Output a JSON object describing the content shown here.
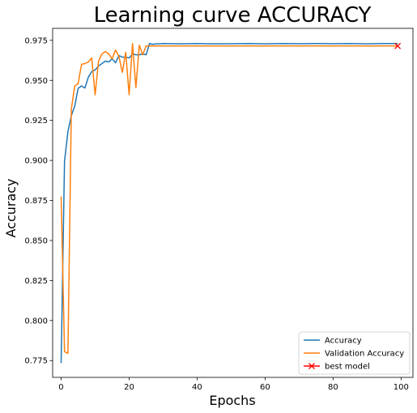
{
  "chart_data": {
    "type": "line",
    "title": "Learning curve ACCURACY",
    "xlabel": "Epochs",
    "ylabel": "Accuracy",
    "xlim": [
      -2.5,
      103.5
    ],
    "ylim": [
      0.7645,
      0.9825
    ],
    "xticks": [
      0,
      20,
      40,
      60,
      80,
      100
    ],
    "xtick_labels": [
      "0",
      "20",
      "40",
      "60",
      "80",
      "100"
    ],
    "yticks": [
      0.775,
      0.8,
      0.825,
      0.85,
      0.875,
      0.9,
      0.925,
      0.95,
      0.975
    ],
    "ytick_labels": [
      "0.775",
      "0.800",
      "0.825",
      "0.850",
      "0.875",
      "0.900",
      "0.925",
      "0.950",
      "0.975"
    ],
    "grid": false,
    "legend_position": "lower-right",
    "series": [
      {
        "name": "Accuracy",
        "color": "#1f77b4",
        "x": [
          0,
          1,
          2,
          3,
          4,
          5,
          6,
          7,
          8,
          9,
          10,
          11,
          12,
          13,
          14,
          15,
          16,
          17,
          18,
          19,
          20,
          21,
          22,
          23,
          24,
          25,
          26,
          27,
          28,
          29,
          30,
          35,
          40,
          45,
          50,
          55,
          60,
          65,
          70,
          75,
          80,
          85,
          90,
          95,
          99
        ],
        "y": [
          0.7735,
          0.8995,
          0.918,
          0.928,
          0.934,
          0.945,
          0.9465,
          0.9452,
          0.952,
          0.9555,
          0.9565,
          0.959,
          0.9605,
          0.962,
          0.9615,
          0.9635,
          0.961,
          0.9655,
          0.9645,
          0.9645,
          0.964,
          0.9665,
          0.966,
          0.966,
          0.9665,
          0.966,
          0.973,
          0.9725,
          0.9728,
          0.9728,
          0.973,
          0.9728,
          0.973,
          0.9728,
          0.9729,
          0.973,
          0.9728,
          0.973,
          0.9729,
          0.973,
          0.9729,
          0.973,
          0.9728,
          0.973,
          0.973
        ]
      },
      {
        "name": "Validation Accuracy",
        "color": "#ff7f0e",
        "x": [
          0,
          1,
          2,
          3,
          4,
          5,
          6,
          7,
          8,
          9,
          10,
          11,
          12,
          13,
          14,
          15,
          16,
          17,
          18,
          19,
          20,
          21,
          22,
          23,
          24,
          25,
          26,
          30,
          35,
          40,
          45,
          50,
          55,
          60,
          65,
          70,
          75,
          80,
          85,
          90,
          95,
          99
        ],
        "y": [
          0.8775,
          0.7805,
          0.7795,
          0.932,
          0.9465,
          0.948,
          0.96,
          0.9605,
          0.9615,
          0.964,
          0.941,
          0.962,
          0.9665,
          0.968,
          0.9665,
          0.9635,
          0.969,
          0.965,
          0.955,
          0.9675,
          0.941,
          0.973,
          0.9455,
          0.972,
          0.966,
          0.9715,
          0.9715,
          0.9715,
          0.9715,
          0.9715,
          0.9715,
          0.9715,
          0.9715,
          0.9715,
          0.9715,
          0.9715,
          0.9715,
          0.9715,
          0.9715,
          0.9715,
          0.9715,
          0.9715
        ]
      },
      {
        "name": "best model",
        "color": "#ff0000",
        "marker": "x",
        "x": [
          99
        ],
        "y": [
          0.9715
        ]
      }
    ]
  }
}
